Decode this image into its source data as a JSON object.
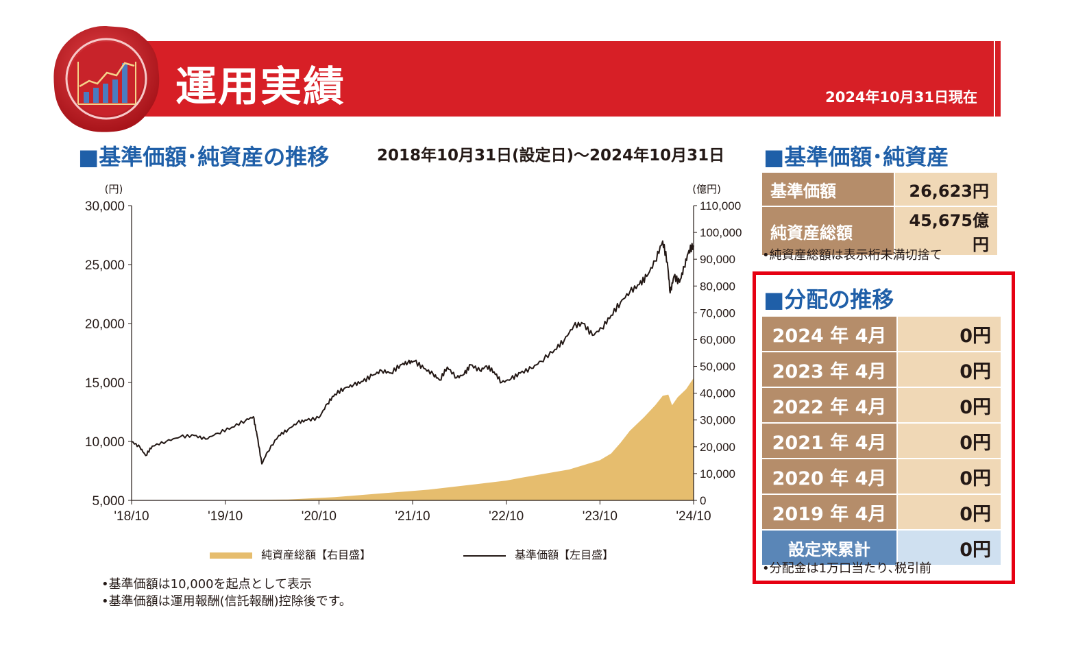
{
  "header": {
    "title": "運用実績",
    "as_of": "2024年10月31日現在",
    "icon": "chart-badge-icon",
    "colors": {
      "band": "#d71f26",
      "accent_blue": "#1f5fa8",
      "gold": "#e6bd6e",
      "brown": "#b58d6a"
    }
  },
  "chart_section": {
    "title": "■基準価額･純資産の推移",
    "period": "2018年10月31日(設定日)～2024年10月31日",
    "notes": [
      "•基準価額は10,000を起点として表示",
      "•基準価額は運用報酬(信託報酬)控除後です。"
    ]
  },
  "chart_data": {
    "type": "line",
    "left_axis": {
      "unit": "(円)",
      "min": 5000,
      "max": 30000,
      "ticks": [
        "5,000",
        "10,000",
        "15,000",
        "20,000",
        "25,000",
        "30,000"
      ]
    },
    "right_axis": {
      "unit": "(億円)",
      "min": 0,
      "max": 110000,
      "ticks": [
        "0",
        "10,000",
        "20,000",
        "30,000",
        "40,000",
        "50,000",
        "60,000",
        "70,000",
        "80,000",
        "90,000",
        "100,000",
        "110,000"
      ]
    },
    "x_ticks": [
      "'18/10",
      "'19/10",
      "'20/10",
      "'21/10",
      "'22/10",
      "'23/10",
      "'24/10"
    ],
    "x_start": 2018.83,
    "x_end": 2024.83,
    "series": [
      {
        "name": "基準価額【左目盛】",
        "type": "line",
        "color": "#231815",
        "axis": "left",
        "points": [
          [
            2018.83,
            10000
          ],
          [
            2018.92,
            9500
          ],
          [
            2018.98,
            8800
          ],
          [
            2019.05,
            9600
          ],
          [
            2019.2,
            10000
          ],
          [
            2019.35,
            10400
          ],
          [
            2019.5,
            10500
          ],
          [
            2019.62,
            10200
          ],
          [
            2019.75,
            10700
          ],
          [
            2019.9,
            11200
          ],
          [
            2020.05,
            11800
          ],
          [
            2020.13,
            12100
          ],
          [
            2020.17,
            10500
          ],
          [
            2020.22,
            8100
          ],
          [
            2020.28,
            9100
          ],
          [
            2020.4,
            10500
          ],
          [
            2020.5,
            11000
          ],
          [
            2020.6,
            11600
          ],
          [
            2020.7,
            11800
          ],
          [
            2020.83,
            12000
          ],
          [
            2020.92,
            13200
          ],
          [
            2021.0,
            14000
          ],
          [
            2021.1,
            14500
          ],
          [
            2021.2,
            14800
          ],
          [
            2021.3,
            15100
          ],
          [
            2021.4,
            15600
          ],
          [
            2021.5,
            16000
          ],
          [
            2021.6,
            15800
          ],
          [
            2021.7,
            16500
          ],
          [
            2021.78,
            16700
          ],
          [
            2021.85,
            16800
          ],
          [
            2021.95,
            16200
          ],
          [
            2022.05,
            15700
          ],
          [
            2022.12,
            15200
          ],
          [
            2022.2,
            16300
          ],
          [
            2022.3,
            15400
          ],
          [
            2022.38,
            15700
          ],
          [
            2022.45,
            16500
          ],
          [
            2022.55,
            16000
          ],
          [
            2022.62,
            16400
          ],
          [
            2022.7,
            15900
          ],
          [
            2022.78,
            15000
          ],
          [
            2022.88,
            15300
          ],
          [
            2022.98,
            15800
          ],
          [
            2023.1,
            16200
          ],
          [
            2023.2,
            16800
          ],
          [
            2023.35,
            17800
          ],
          [
            2023.45,
            18600
          ],
          [
            2023.55,
            19800
          ],
          [
            2023.65,
            20000
          ],
          [
            2023.75,
            19000
          ],
          [
            2023.85,
            19600
          ],
          [
            2023.95,
            20700
          ],
          [
            2024.05,
            21800
          ],
          [
            2024.15,
            22700
          ],
          [
            2024.25,
            23300
          ],
          [
            2024.33,
            24000
          ],
          [
            2024.42,
            25300
          ],
          [
            2024.5,
            27000
          ],
          [
            2024.55,
            25200
          ],
          [
            2024.58,
            22600
          ],
          [
            2024.62,
            24000
          ],
          [
            2024.68,
            23500
          ],
          [
            2024.73,
            24800
          ],
          [
            2024.78,
            26200
          ],
          [
            2024.83,
            26623
          ]
        ]
      },
      {
        "name": "純資産総額【右目盛】",
        "type": "area",
        "color": "#e6bd6e",
        "axis": "right",
        "points": [
          [
            2018.83,
            0
          ],
          [
            2019.5,
            50
          ],
          [
            2020.0,
            150
          ],
          [
            2020.5,
            300
          ],
          [
            2021.0,
            1200
          ],
          [
            2021.5,
            2600
          ],
          [
            2021.83,
            3500
          ],
          [
            2022.0,
            4000
          ],
          [
            2022.5,
            6000
          ],
          [
            2022.83,
            7400
          ],
          [
            2023.0,
            8500
          ],
          [
            2023.5,
            11500
          ],
          [
            2023.83,
            15000
          ],
          [
            2023.95,
            17500
          ],
          [
            2024.05,
            21500
          ],
          [
            2024.15,
            26000
          ],
          [
            2024.3,
            31000
          ],
          [
            2024.42,
            35500
          ],
          [
            2024.5,
            39000
          ],
          [
            2024.56,
            39500
          ],
          [
            2024.6,
            35500
          ],
          [
            2024.66,
            38500
          ],
          [
            2024.75,
            41500
          ],
          [
            2024.83,
            45675
          ]
        ]
      }
    ],
    "legend": [
      {
        "label": "純資産総額【右目盛】",
        "kind": "area"
      },
      {
        "label": "基準価額【左目盛】",
        "kind": "line"
      }
    ]
  },
  "price_section": {
    "title": "■基準価額･純資産",
    "rows": [
      {
        "label": "基準価額",
        "value": "26,623円"
      },
      {
        "label": "純資産総額",
        "value": "45,675億円"
      }
    ],
    "note": "•純資産総額は表示桁未満切捨て"
  },
  "dividend_section": {
    "title": "■分配の推移",
    "rows": [
      {
        "label": "2024 年  4月",
        "value": "0円"
      },
      {
        "label": "2023 年  4月",
        "value": "0円"
      },
      {
        "label": "2022 年  4月",
        "value": "0円"
      },
      {
        "label": "2021 年  4月",
        "value": "0円"
      },
      {
        "label": "2020 年  4月",
        "value": "0円"
      },
      {
        "label": "2019 年  4月",
        "value": "0円"
      }
    ],
    "total": {
      "label": "設定来累計",
      "value": "0円"
    },
    "note": "•分配金は1万口当たり､税引前"
  }
}
